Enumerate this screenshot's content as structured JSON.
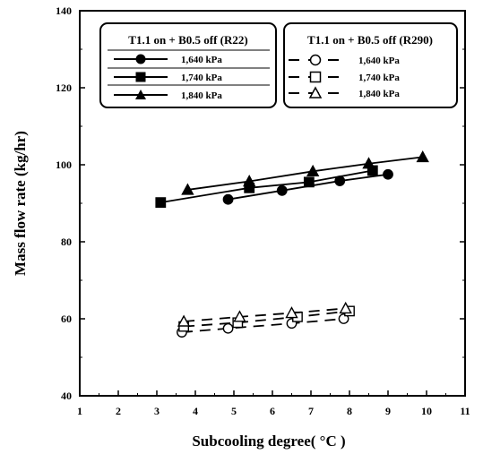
{
  "chart_data": {
    "type": "line",
    "xlabel": "Subcooling degree( °C )",
    "ylabel": "Mass flow rate (kg/hr)",
    "xlim": [
      1,
      11
    ],
    "ylim": [
      40,
      140
    ],
    "xticks": [
      1,
      2,
      3,
      4,
      5,
      6,
      7,
      8,
      9,
      10,
      11
    ],
    "yticks": [
      40,
      60,
      80,
      100,
      120,
      140
    ],
    "grid": false,
    "legends": [
      {
        "title": "T1.1 on + B0.5 off (R22)",
        "placement": "top-left",
        "entries": [
          "1,640 kPa",
          "1,740 kPa",
          "1,840 kPa"
        ]
      },
      {
        "title": "T1.1 on + B0.5 off (R290)",
        "placement": "top-right",
        "entries": [
          "1,640 kPa",
          "1,740 kPa",
          "1,840 kPa"
        ]
      }
    ],
    "series": [
      {
        "name": "1,640 kPa",
        "group": "R22",
        "marker": "circle",
        "filled": true,
        "line": "solid",
        "x": [
          4.85,
          6.25,
          7.75,
          9.0
        ],
        "y": [
          91.0,
          93.3,
          95.8,
          97.5
        ]
      },
      {
        "name": "1,740 kPa",
        "group": "R22",
        "marker": "square",
        "filled": true,
        "line": "solid",
        "x": [
          3.1,
          5.4,
          6.95,
          8.6
        ],
        "y": [
          90.2,
          94.0,
          95.5,
          98.5
        ]
      },
      {
        "name": "1,840 kPa",
        "group": "R22",
        "marker": "triangle",
        "filled": true,
        "line": "solid",
        "x": [
          3.8,
          5.4,
          7.05,
          8.5,
          9.9
        ],
        "y": [
          93.5,
          95.7,
          98.3,
          100.3,
          102.0
        ]
      },
      {
        "name": "1,640 kPa",
        "group": "R290",
        "marker": "circle",
        "filled": false,
        "line": "dashed",
        "x": [
          3.65,
          4.85,
          6.5,
          7.85
        ],
        "y": [
          56.5,
          57.5,
          58.8,
          60.0
        ]
      },
      {
        "name": "1,740 kPa",
        "group": "R290",
        "marker": "square",
        "filled": false,
        "line": "dashed",
        "x": [
          3.7,
          5.1,
          6.65,
          8.0
        ],
        "y": [
          58.0,
          59.0,
          60.5,
          62.0
        ]
      },
      {
        "name": "1,840 kPa",
        "group": "R290",
        "marker": "triangle",
        "filled": false,
        "line": "dashed",
        "x": [
          3.7,
          5.15,
          6.5,
          7.9
        ],
        "y": [
          59.3,
          60.5,
          61.5,
          62.7
        ]
      }
    ]
  }
}
